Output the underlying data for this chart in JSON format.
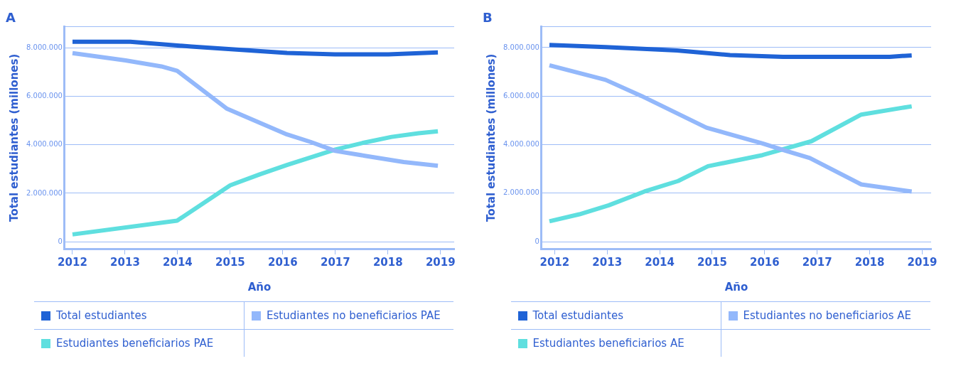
{
  "chart_data": [
    {
      "type": "line",
      "title": "A",
      "xlabel": "Año",
      "ylabel": "Total estudiantes (millones)",
      "xlim": [
        2011.85,
        2019.26
      ],
      "xticks": [
        2012,
        2013,
        2014,
        2015,
        2016,
        2017,
        2018,
        2019
      ],
      "ylim": [
        -290000,
        8880000
      ],
      "yticks": [
        {
          "value": 0,
          "label": "0"
        },
        {
          "value": 2000000,
          "label": "2.000.000"
        },
        {
          "value": 4000000,
          "label": "4.000.000"
        },
        {
          "value": 6000000,
          "label": "6.000.000"
        },
        {
          "value": 8000000,
          "label": "8.000.000"
        },
        {
          "value": 8880000,
          "label": null
        }
      ],
      "grid": "y",
      "legend": "bottom",
      "marker": "none",
      "line_style": "solid",
      "series": [
        {
          "name": "Total estudiantes",
          "color": "#1f63d6",
          "x": [
            2012,
            2013.1,
            2014.26,
            2016.08,
            2016.99,
            2018.01,
            2018.95
          ],
          "values": [
            8260000,
            8260000,
            8060000,
            7800000,
            7740000,
            7740000,
            7820000
          ]
        },
        {
          "name": "Estudiantes no beneficiarios PAE",
          "color": "#93b8fb",
          "x": [
            2012,
            2013.01,
            2013.69,
            2013.99,
            2014.94,
            2016.08,
            2016.53,
            2017.0,
            2017.56,
            2018.3,
            2018.95
          ],
          "values": [
            7790000,
            7490000,
            7240000,
            7060000,
            5490000,
            4430000,
            4120000,
            3750000,
            3550000,
            3290000,
            3140000
          ]
        },
        {
          "name": "Estudiantes beneficiarios PAE",
          "color": "#5fdfdf",
          "x": [
            2012,
            2013.99,
            2015.0,
            2015.57,
            2016.08,
            2017.0,
            2017.56,
            2018.07,
            2018.58,
            2018.95
          ],
          "values": [
            300000,
            870000,
            2330000,
            2790000,
            3170000,
            3810000,
            4100000,
            4330000,
            4480000,
            4560000
          ]
        }
      ]
    },
    {
      "type": "line",
      "title": "B",
      "xlabel": "Año",
      "ylabel": "Total estudiantes (millones)",
      "xlim": [
        2011.75,
        2019.17
      ],
      "xticks": [
        2012,
        2013,
        2014,
        2015,
        2016,
        2017,
        2018,
        2019
      ],
      "ylim": [
        -290000,
        8860000
      ],
      "yticks": [
        {
          "value": 0,
          "label": "0"
        },
        {
          "value": 2000000,
          "label": "2.000.000"
        },
        {
          "value": 4000000,
          "label": "4.000.000"
        },
        {
          "value": 6000000,
          "label": "6.000.000"
        },
        {
          "value": 8000000,
          "label": "8.000.000"
        },
        {
          "value": 8860000,
          "label": null
        }
      ],
      "grid": "y",
      "legend": "bottom",
      "marker": "none",
      "line_style": "solid",
      "series": [
        {
          "name": "Total estudiantes",
          "color": "#1f63d6",
          "x": [
            2011.9,
            2012.97,
            2014.33,
            2015.34,
            2016.35,
            2018.38,
            2018.8
          ],
          "values": [
            8110000,
            8020000,
            7880000,
            7690000,
            7620000,
            7620000,
            7680000
          ]
        },
        {
          "name": "Estudiantes no beneficiarios AE",
          "color": "#93b8fb",
          "x": [
            2011.9,
            2012.97,
            2013.65,
            2014.89,
            2015.96,
            2016.41,
            2016.86,
            2017.84,
            2018.8
          ],
          "values": [
            7270000,
            6670000,
            6010000,
            4700000,
            4050000,
            3740000,
            3450000,
            2360000,
            2070000
          ]
        },
        {
          "name": "Estudiantes beneficiarios AE",
          "color": "#5fdfdf",
          "x": [
            2011.9,
            2012.47,
            2013.03,
            2013.71,
            2014.35,
            2014.92,
            2015.96,
            2016.89,
            2017.84,
            2018.8
          ],
          "values": [
            840000,
            1130000,
            1500000,
            2070000,
            2500000,
            3110000,
            3570000,
            4140000,
            5240000,
            5580000
          ]
        }
      ]
    }
  ]
}
